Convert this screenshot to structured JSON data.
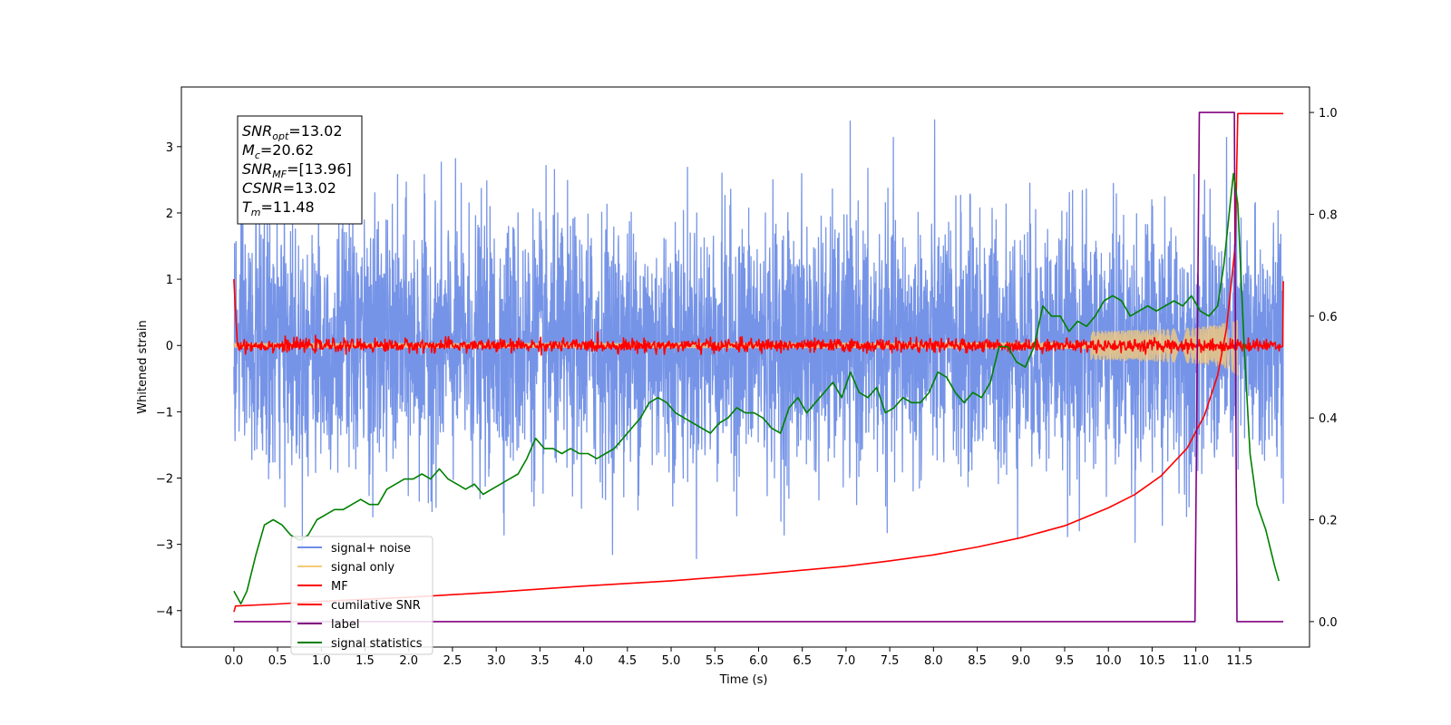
{
  "chart_data": {
    "type": "line",
    "title": "",
    "xlabel": "Time (s)",
    "ylabel": "Whitened strain",
    "xlim": [
      -0.6,
      12.3
    ],
    "ylim": [
      -4.55,
      3.9
    ],
    "y2lim": [
      -0.05,
      1.05
    ],
    "grid": false,
    "legend_position": "lower-left",
    "x_ticks": [
      0.0,
      0.5,
      1.0,
      1.5,
      2.0,
      2.5,
      3.0,
      3.5,
      4.0,
      4.5,
      5.0,
      5.5,
      6.0,
      6.5,
      7.0,
      7.5,
      8.0,
      8.5,
      9.0,
      9.5,
      10.0,
      10.5,
      11.0,
      11.5
    ],
    "x_tick_labels": [
      "0.0",
      "0.5",
      "1.0",
      "1.5",
      "2.0",
      "2.5",
      "3.0",
      "3.5",
      "4.0",
      "4.5",
      "5.0",
      "5.5",
      "6.0",
      "6.5",
      "7.0",
      "7.5",
      "8.0",
      "8.5",
      "9.0",
      "9.5",
      "10.0",
      "10.5",
      "11.0",
      "11.5"
    ],
    "y_ticks": [
      -4,
      -3,
      -2,
      -1,
      0,
      1,
      2,
      3
    ],
    "y_tick_labels": [
      "−4",
      "−3",
      "−2",
      "−1",
      "0",
      "1",
      "2",
      "3"
    ],
    "y2_ticks": [
      0.0,
      0.2,
      0.4,
      0.6,
      0.8,
      1.0
    ],
    "y2_tick_labels": [
      "0.0",
      "0.2",
      "0.4",
      "0.6",
      "0.8",
      "1.0"
    ],
    "annotation": {
      "lines": [
        {
          "var": "SNR",
          "sub": "opt",
          "value": "=13.02"
        },
        {
          "var": "M",
          "sub": "c",
          "value": "=20.62"
        },
        {
          "var": "SNR",
          "sub": "MF",
          "value": "=[13.96]"
        },
        {
          "var": "CSNR",
          "sub": "",
          "value": "=13.02"
        },
        {
          "var": "T",
          "sub": "m",
          "value": "=11.48"
        }
      ]
    },
    "series": [
      {
        "name": "signal+ noise",
        "color": "#6f8ee6",
        "axis": "left",
        "kind": "noise",
        "x_range": [
          0.0,
          12.0
        ],
        "y_range": [
          -4.05,
          3.5
        ],
        "std": 1.0
      },
      {
        "name": "signal only",
        "color": "#f5c97a",
        "axis": "left",
        "kind": "chirp",
        "x_range": [
          0.0,
          11.48
        ],
        "peak_time": 11.48,
        "peak_amplitude": 1.4
      },
      {
        "name": "MF",
        "color": "#ff0000",
        "axis": "left",
        "kind": "matched-filter",
        "x_range": [
          0.0,
          12.0
        ],
        "baseline": 0.0,
        "noise_amplitude": 0.08,
        "start_value": 1.0,
        "end_value": 0.97
      },
      {
        "name": "cumilative SNR",
        "color": "#ff0000",
        "axis": "left",
        "kind": "cumulative",
        "x": [
          0.0,
          0.02,
          0.5,
          1.0,
          2.0,
          3.0,
          4.0,
          5.0,
          6.0,
          7.0,
          7.5,
          8.0,
          8.5,
          9.0,
          9.5,
          10.0,
          10.3,
          10.6,
          10.9,
          11.1,
          11.25,
          11.35,
          11.45,
          11.48,
          11.5,
          11.6,
          11.8,
          12.0
        ],
        "y": [
          -4.02,
          -3.93,
          -3.9,
          -3.86,
          -3.8,
          -3.72,
          -3.63,
          -3.55,
          -3.45,
          -3.33,
          -3.25,
          -3.16,
          -3.04,
          -2.9,
          -2.72,
          -2.45,
          -2.25,
          -1.97,
          -1.55,
          -1.05,
          -0.45,
          0.25,
          1.5,
          3.5,
          3.5,
          3.5,
          3.5,
          3.5
        ]
      },
      {
        "name": "label",
        "color": "#800080",
        "axis": "right",
        "x": [
          0.0,
          10.99,
          11.04,
          11.44,
          11.47,
          11.5,
          12.0
        ],
        "y": [
          0.0,
          0.0,
          1.0,
          1.0,
          0.0,
          0.0,
          0.0
        ]
      },
      {
        "name": "signal statistics",
        "color": "#008000",
        "axis": "right",
        "x": [
          0.0,
          0.08,
          0.15,
          0.25,
          0.35,
          0.45,
          0.55,
          0.65,
          0.75,
          0.85,
          0.95,
          1.05,
          1.15,
          1.25,
          1.35,
          1.45,
          1.55,
          1.65,
          1.75,
          1.85,
          1.95,
          2.05,
          2.15,
          2.25,
          2.35,
          2.45,
          2.55,
          2.65,
          2.75,
          2.85,
          2.95,
          3.05,
          3.15,
          3.25,
          3.35,
          3.45,
          3.55,
          3.65,
          3.75,
          3.85,
          3.95,
          4.05,
          4.15,
          4.25,
          4.35,
          4.45,
          4.55,
          4.65,
          4.75,
          4.85,
          4.95,
          5.05,
          5.15,
          5.25,
          5.35,
          5.45,
          5.55,
          5.65,
          5.75,
          5.85,
          5.95,
          6.05,
          6.15,
          6.25,
          6.35,
          6.45,
          6.55,
          6.65,
          6.75,
          6.85,
          6.95,
          7.05,
          7.15,
          7.25,
          7.35,
          7.45,
          7.55,
          7.65,
          7.75,
          7.85,
          7.95,
          8.05,
          8.15,
          8.25,
          8.35,
          8.45,
          8.55,
          8.65,
          8.75,
          8.85,
          8.95,
          9.05,
          9.15,
          9.25,
          9.35,
          9.45,
          9.55,
          9.65,
          9.75,
          9.85,
          9.95,
          10.05,
          10.15,
          10.25,
          10.35,
          10.45,
          10.55,
          10.65,
          10.75,
          10.85,
          10.95,
          11.05,
          11.15,
          11.25,
          11.32,
          11.38,
          11.43,
          11.48,
          11.55,
          11.62,
          11.7,
          11.8,
          11.9,
          11.95
        ],
        "y": [
          0.06,
          0.035,
          0.06,
          0.13,
          0.19,
          0.2,
          0.19,
          0.17,
          0.16,
          0.17,
          0.2,
          0.21,
          0.22,
          0.22,
          0.23,
          0.24,
          0.23,
          0.23,
          0.26,
          0.27,
          0.28,
          0.28,
          0.29,
          0.28,
          0.3,
          0.28,
          0.27,
          0.26,
          0.27,
          0.25,
          0.26,
          0.27,
          0.28,
          0.29,
          0.32,
          0.36,
          0.34,
          0.34,
          0.33,
          0.34,
          0.33,
          0.33,
          0.32,
          0.33,
          0.34,
          0.36,
          0.38,
          0.4,
          0.43,
          0.44,
          0.43,
          0.41,
          0.4,
          0.39,
          0.38,
          0.37,
          0.39,
          0.4,
          0.42,
          0.41,
          0.41,
          0.4,
          0.38,
          0.37,
          0.42,
          0.44,
          0.41,
          0.43,
          0.45,
          0.47,
          0.44,
          0.49,
          0.45,
          0.44,
          0.46,
          0.41,
          0.42,
          0.44,
          0.43,
          0.43,
          0.45,
          0.49,
          0.48,
          0.45,
          0.43,
          0.45,
          0.44,
          0.47,
          0.54,
          0.54,
          0.51,
          0.5,
          0.54,
          0.62,
          0.6,
          0.6,
          0.57,
          0.59,
          0.58,
          0.6,
          0.63,
          0.64,
          0.63,
          0.6,
          0.61,
          0.62,
          0.61,
          0.62,
          0.63,
          0.62,
          0.64,
          0.61,
          0.6,
          0.62,
          0.7,
          0.8,
          0.88,
          0.82,
          0.55,
          0.33,
          0.23,
          0.18,
          0.11,
          0.08
        ]
      }
    ]
  }
}
